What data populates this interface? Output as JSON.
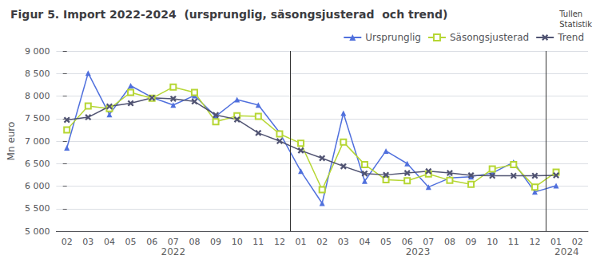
{
  "chart_data": {
    "type": "line",
    "title": "Figur 5. Import 2022-2024  (ursprunglig, säsongsjusterad  och trend)",
    "watermark": "Tullen\nStatistik",
    "y_label": "Mn euro",
    "categories": [
      "02",
      "03",
      "04",
      "05",
      "06",
      "07",
      "08",
      "09",
      "10",
      "11",
      "12",
      "01",
      "02",
      "03",
      "04",
      "05",
      "06",
      "07",
      "08",
      "09",
      "10",
      "11",
      "12",
      "01",
      "02"
    ],
    "annotations": [
      "2022",
      "2023",
      "2024"
    ],
    "series": [
      {
        "name": "Ursprunglig",
        "marker": "triangle",
        "values": [
          6850,
          8510,
          7590,
          8230,
          7970,
          7800,
          8010,
          7550,
          7920,
          7800,
          7190,
          6330,
          5620,
          7620,
          6110,
          6780,
          6500,
          5980,
          6180,
          6210,
          6290,
          6530,
          5870,
          6010,
          null
        ]
      },
      {
        "name": "Säsongsjusterad",
        "marker": "square",
        "values": [
          7250,
          7780,
          7720,
          8080,
          7950,
          8200,
          8080,
          7430,
          7560,
          7550,
          7160,
          6950,
          5920,
          6980,
          6480,
          6140,
          6120,
          6270,
          6130,
          6040,
          6380,
          6480,
          5980,
          6310,
          null
        ]
      },
      {
        "name": "Trend",
        "marker": "x",
        "values": [
          7470,
          7530,
          7770,
          7840,
          7960,
          7940,
          7880,
          7580,
          7480,
          7180,
          7000,
          6790,
          6620,
          6440,
          6280,
          6250,
          6290,
          6330,
          6290,
          6240,
          6230,
          6230,
          6230,
          6240,
          null
        ]
      }
    ],
    "ylim": [
      5000,
      9000
    ],
    "yticks": [
      {
        "value": 5000,
        "label": "5 000"
      },
      {
        "value": 5500,
        "label": "5 500"
      },
      {
        "value": 6000,
        "label": "6 000"
      },
      {
        "value": 6500,
        "label": "6 500"
      },
      {
        "value": 7000,
        "label": "7 000"
      },
      {
        "value": 7500,
        "label": "7 500"
      },
      {
        "value": 8000,
        "label": "8 000"
      },
      {
        "value": 8500,
        "label": "8 500"
      },
      {
        "value": 9000,
        "label": "9 000"
      }
    ],
    "grid": true,
    "legend": "top right"
  }
}
